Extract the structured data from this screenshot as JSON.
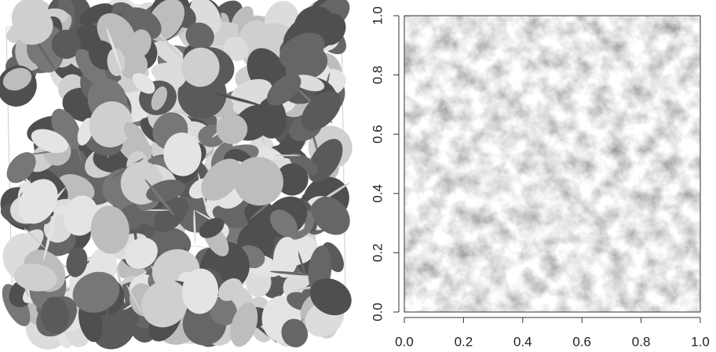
{
  "chart_data": {
    "type": "image",
    "xlim": [
      0,
      1
    ],
    "ylim": [
      0,
      1
    ],
    "xticks": [
      {
        "value": 0,
        "label": "0.0"
      },
      {
        "value": 0.2,
        "label": "0.2"
      },
      {
        "value": 0.4,
        "label": "0.4"
      },
      {
        "value": 0.6,
        "label": "0.6"
      },
      {
        "value": 0.8,
        "label": "0.8"
      },
      {
        "value": 1,
        "label": "1.0"
      }
    ],
    "yticks": [
      {
        "value": 0,
        "label": "0.0"
      },
      {
        "value": 0.2,
        "label": "0.2"
      },
      {
        "value": 0.4,
        "label": "0.4"
      },
      {
        "value": 0.6,
        "label": "0.6"
      },
      {
        "value": 0.8,
        "label": "0.8"
      },
      {
        "value": 1,
        "label": "1.0"
      }
    ]
  }
}
